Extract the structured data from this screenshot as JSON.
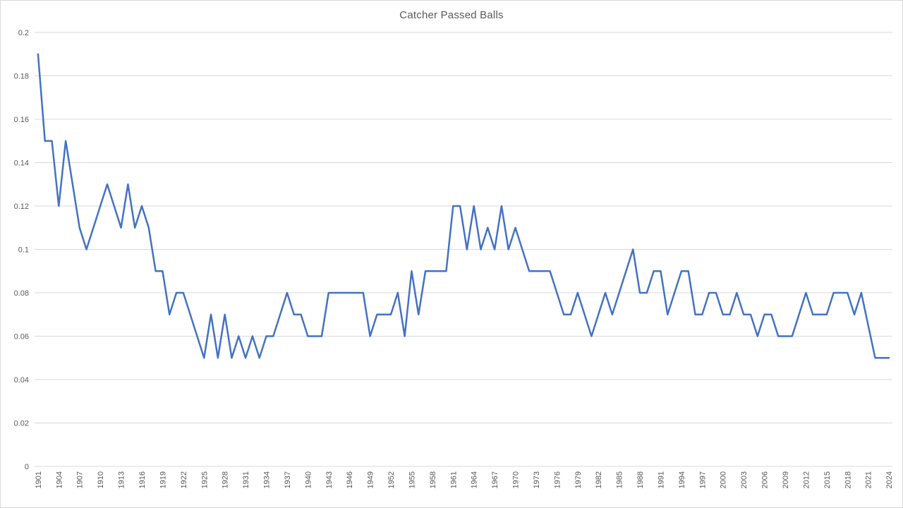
{
  "chart_data": {
    "type": "line",
    "title": "Catcher Passed Balls",
    "xlabel": "",
    "ylabel": "",
    "legend": "none",
    "grid": true,
    "ylim": [
      0,
      0.2
    ],
    "ytick_step": 0.02,
    "ytick_labels": [
      "0",
      "0.02",
      "0.04",
      "0.06",
      "0.08",
      "0.1",
      "0.12",
      "0.14",
      "0.16",
      "0.18",
      "0.2"
    ],
    "xtick_label_every": 3,
    "xtick_rotation_degrees": 90,
    "years": [
      1901,
      1902,
      1903,
      1904,
      1905,
      1906,
      1907,
      1908,
      1909,
      1910,
      1911,
      1912,
      1913,
      1914,
      1915,
      1916,
      1917,
      1918,
      1919,
      1920,
      1921,
      1922,
      1923,
      1924,
      1925,
      1926,
      1927,
      1928,
      1929,
      1930,
      1931,
      1932,
      1933,
      1934,
      1935,
      1936,
      1937,
      1938,
      1939,
      1940,
      1941,
      1942,
      1943,
      1944,
      1945,
      1946,
      1947,
      1948,
      1949,
      1950,
      1951,
      1952,
      1953,
      1954,
      1955,
      1956,
      1957,
      1958,
      1959,
      1960,
      1961,
      1962,
      1963,
      1964,
      1965,
      1966,
      1967,
      1968,
      1969,
      1970,
      1971,
      1972,
      1973,
      1974,
      1975,
      1976,
      1977,
      1978,
      1979,
      1980,
      1981,
      1982,
      1983,
      1984,
      1985,
      1986,
      1987,
      1988,
      1989,
      1990,
      1991,
      1992,
      1993,
      1994,
      1995,
      1996,
      1997,
      1998,
      1999,
      2000,
      2001,
      2002,
      2003,
      2004,
      2005,
      2006,
      2007,
      2008,
      2009,
      2010,
      2011,
      2012,
      2013,
      2014,
      2015,
      2016,
      2017,
      2018,
      2019,
      2020,
      2021,
      2022,
      2023,
      2024
    ],
    "values": [
      0.19,
      0.15,
      0.15,
      0.12,
      0.15,
      0.13,
      0.11,
      0.1,
      0.11,
      0.12,
      0.13,
      0.12,
      0.11,
      0.13,
      0.11,
      0.12,
      0.11,
      0.09,
      0.09,
      0.07,
      0.08,
      0.08,
      0.07,
      0.06,
      0.05,
      0.07,
      0.05,
      0.07,
      0.05,
      0.06,
      0.05,
      0.06,
      0.05,
      0.06,
      0.06,
      0.07,
      0.08,
      0.07,
      0.07,
      0.06,
      0.06,
      0.06,
      0.08,
      0.08,
      0.08,
      0.08,
      0.08,
      0.08,
      0.06,
      0.07,
      0.07,
      0.07,
      0.08,
      0.06,
      0.09,
      0.07,
      0.09,
      0.09,
      0.09,
      0.09,
      0.12,
      0.12,
      0.1,
      0.12,
      0.1,
      0.11,
      0.1,
      0.12,
      0.1,
      0.11,
      0.1,
      0.09,
      0.09,
      0.09,
      0.09,
      0.08,
      0.07,
      0.07,
      0.08,
      0.07,
      0.06,
      0.07,
      0.08,
      0.07,
      0.08,
      0.09,
      0.1,
      0.08,
      0.08,
      0.09,
      0.09,
      0.07,
      0.08,
      0.09,
      0.09,
      0.07,
      0.07,
      0.08,
      0.08,
      0.07,
      0.07,
      0.08,
      0.07,
      0.07,
      0.06,
      0.07,
      0.07,
      0.06,
      0.06,
      0.06,
      0.07,
      0.08,
      0.07,
      0.07,
      0.07,
      0.08,
      0.08,
      0.08,
      0.07,
      0.08,
      0.065,
      0.05,
      0.05,
      0.05
    ],
    "colors": {
      "line": "#4472C4",
      "gridline": "#D9D9D9",
      "axis_line": "#D9D9D9",
      "tick_label": "#595959",
      "title": "#595959",
      "background": "#FFFFFF"
    },
    "line_width": 2.5
  }
}
